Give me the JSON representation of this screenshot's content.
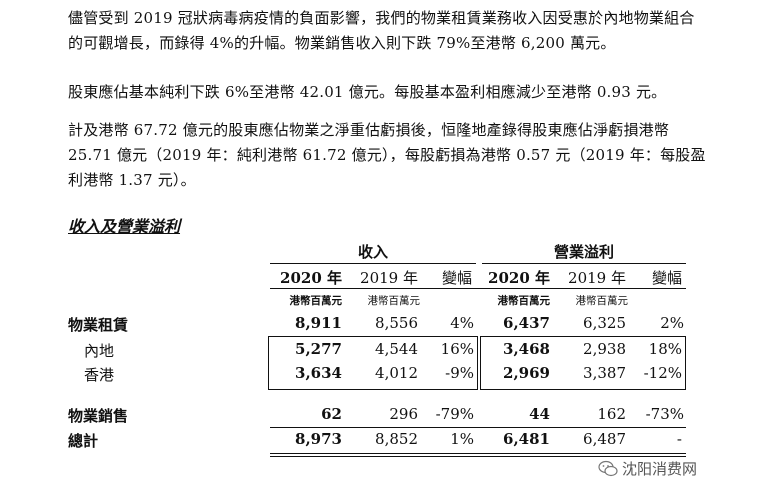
{
  "paragraphs": {
    "p1": "儘管受到 2019 冠狀病毒病疫情的負面影響，我們的物業租賃業務收入因受惠於內地物業組合的可觀增長，而錄得 4%的升幅。物業銷售收入則下跌 79%至港幣 6,200 萬元。",
    "p2": "股東應佔基本純利下跌 6%至港幣 42.01 億元。每股基本盈利相應減少至港幣 0.93 元。",
    "p3": "計及港幣 67.72 億元的股東應佔物業之淨重估虧損後，恒隆地產錄得股東應佔淨虧損港幣 25.71 億元（2019 年：純利港幣 61.72 億元），每股虧損為港幣 0.57 元（2019 年：每股盈利港幣 1.37 元）。"
  },
  "table": {
    "title": "收入及營業溢利",
    "group_revenue": "收入",
    "group_profit": "營業溢利",
    "col_2020": "2020 年",
    "col_2019": "2019 年",
    "col_change": "變幅",
    "unit": "港幣百萬元",
    "rows": [
      {
        "label": "物業租賃",
        "r2020": "8,911",
        "r2019": "8,556",
        "rchg": "4%",
        "p2020": "6,437",
        "p2019": "6,325",
        "pchg": "2%"
      },
      {
        "label": "內地",
        "r2020": "5,277",
        "r2019": "4,544",
        "rchg": "16%",
        "p2020": "3,468",
        "p2019": "2,938",
        "pchg": "18%"
      },
      {
        "label": "香港",
        "r2020": "3,634",
        "r2019": "4,012",
        "rchg": "-9%",
        "p2020": "2,969",
        "p2019": "3,387",
        "pchg": "-12%"
      },
      {
        "label": "物業銷售",
        "r2020": "62",
        "r2019": "296",
        "rchg": "-79%",
        "p2020": "44",
        "p2019": "162",
        "pchg": "-73%"
      },
      {
        "label": "總計",
        "r2020": "8,973",
        "r2019": "8,852",
        "rchg": "1%",
        "p2020": "6,481",
        "p2019": "6,487",
        "pchg": "-"
      }
    ]
  },
  "watermark": {
    "text": "沈阳消费网",
    "icon": "wechat-icon"
  }
}
